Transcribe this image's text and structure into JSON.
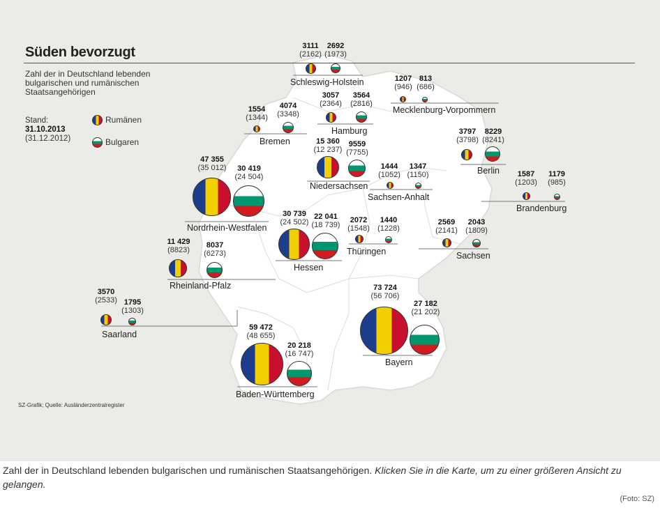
{
  "title": "Süden bevorzugt",
  "subtitle": "Zahl der in Deutschland lebenden bulgarischen und rumänischen Staatsangehörigen",
  "stand": {
    "label": "Stand:",
    "current": "31.10.2013",
    "previous": "(31.12.2012)"
  },
  "legend": {
    "romania": "Rumänen",
    "bulgaria": "Bulgaren"
  },
  "source": "SZ-Grafik; Quelle: Ausländerzentralregister",
  "colors": {
    "ro_blue": "#1c3c8c",
    "ro_yellow": "#f2cf00",
    "ro_red": "#c8102e",
    "bg_white": "#ffffff",
    "bg_green": "#00966e",
    "bg_red": "#d01c1f",
    "map_fill": "#ffffff",
    "background": "#ebebe8"
  },
  "states": [
    {
      "name": "Schleswig-Holstein",
      "ro": "3111",
      "ro_prev": "(2162)",
      "bg": "2692",
      "bg_prev": "(1973)"
    },
    {
      "name": "Mecklenburg-Vorpommern",
      "ro": "1207",
      "ro_prev": "(946)",
      "bg": "813",
      "bg_prev": "(686)"
    },
    {
      "name": "Hamburg",
      "ro": "3057",
      "ro_prev": "(2364)",
      "bg": "3564",
      "bg_prev": "(2816)"
    },
    {
      "name": "Bremen",
      "ro": "1554",
      "ro_prev": "(1344)",
      "bg": "4074",
      "bg_prev": "(3348)"
    },
    {
      "name": "Niedersachsen",
      "ro": "15 360",
      "ro_prev": "(12 237)",
      "bg": "9559",
      "bg_prev": "(7755)"
    },
    {
      "name": "Berlin",
      "ro": "3797",
      "ro_prev": "(3798)",
      "bg": "8229",
      "bg_prev": "(8241)"
    },
    {
      "name": "Sachsen-Anhalt",
      "ro": "1444",
      "ro_prev": "(1052)",
      "bg": "1347",
      "bg_prev": "(1150)"
    },
    {
      "name": "Brandenburg",
      "ro": "1587",
      "ro_prev": "(1203)",
      "bg": "1179",
      "bg_prev": "(985)"
    },
    {
      "name": "Nordrhein-Westfalen",
      "ro": "47 355",
      "ro_prev": "(35 012)",
      "bg": "30 419",
      "bg_prev": "(24 504)"
    },
    {
      "name": "Hessen",
      "ro": "30 739",
      "ro_prev": "(24 502)",
      "bg": "22 041",
      "bg_prev": "(18 739)"
    },
    {
      "name": "Thüringen",
      "ro": "2072",
      "ro_prev": "(1548)",
      "bg": "1440",
      "bg_prev": "(1228)"
    },
    {
      "name": "Sachsen",
      "ro": "2569",
      "ro_prev": "(2141)",
      "bg": "2043",
      "bg_prev": "(1809)"
    },
    {
      "name": "Rheinland-Pfalz",
      "ro": "11 429",
      "ro_prev": "(8823)",
      "bg": "8037",
      "bg_prev": "(6273)"
    },
    {
      "name": "Saarland",
      "ro": "3570",
      "ro_prev": "(2533)",
      "bg": "1795",
      "bg_prev": "(1303)"
    },
    {
      "name": "Bayern",
      "ro": "73 724",
      "ro_prev": "(56 706)",
      "bg": "27 182",
      "bg_prev": "(21 202)"
    },
    {
      "name": "Baden-Württemberg",
      "ro": "59 472",
      "ro_prev": "(48 655)",
      "bg": "20 218",
      "bg_prev": "(16 747)"
    }
  ],
  "caption": {
    "text": "Zahl der in Deutschland lebenden bulgarischen und rumänischen Staatsangehörigen. ",
    "link": "Klicken Sie in die Karte, um zu einer größeren Ansicht zu gelangen."
  },
  "credit": "(Foto: SZ)"
}
